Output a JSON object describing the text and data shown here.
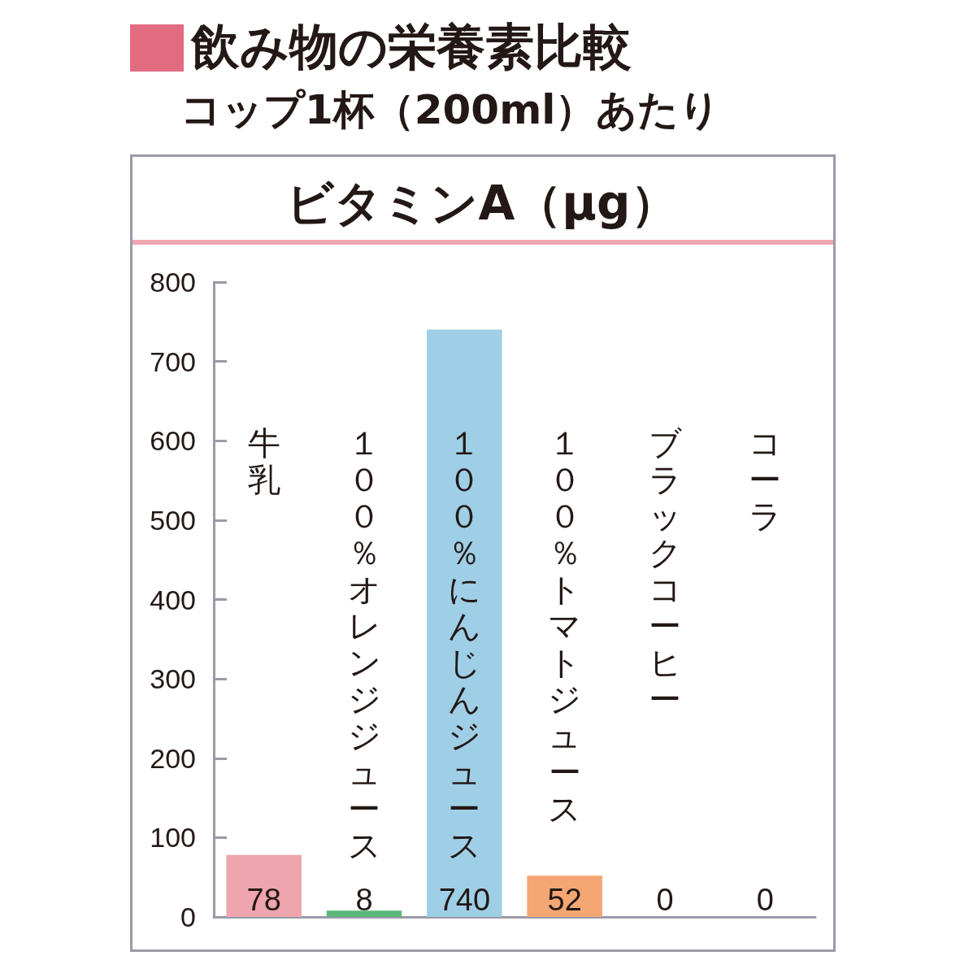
{
  "chart_data": {
    "type": "bar",
    "title": "飲み物の栄養素比較",
    "subtitle": "コップ1杯（200ml）あたり",
    "ylabel": "ビタミンA（μg）",
    "categories": [
      "牛乳",
      "１００％オレンジジュース",
      "１００％にんじんジュース",
      "１００％トマトジュース",
      "ブラックコーヒー",
      "コーラ"
    ],
    "values": [
      78,
      8,
      740,
      52,
      0,
      0
    ],
    "colors": [
      "#eea5ad",
      "#5cb87a",
      "#9ecfe6",
      "#f4a772",
      "#cccccc",
      "#cccccc"
    ],
    "ylim": [
      0,
      800
    ],
    "yticks": [
      0,
      100,
      200,
      300,
      400,
      500,
      600,
      700,
      800
    ],
    "data_labels": true
  }
}
